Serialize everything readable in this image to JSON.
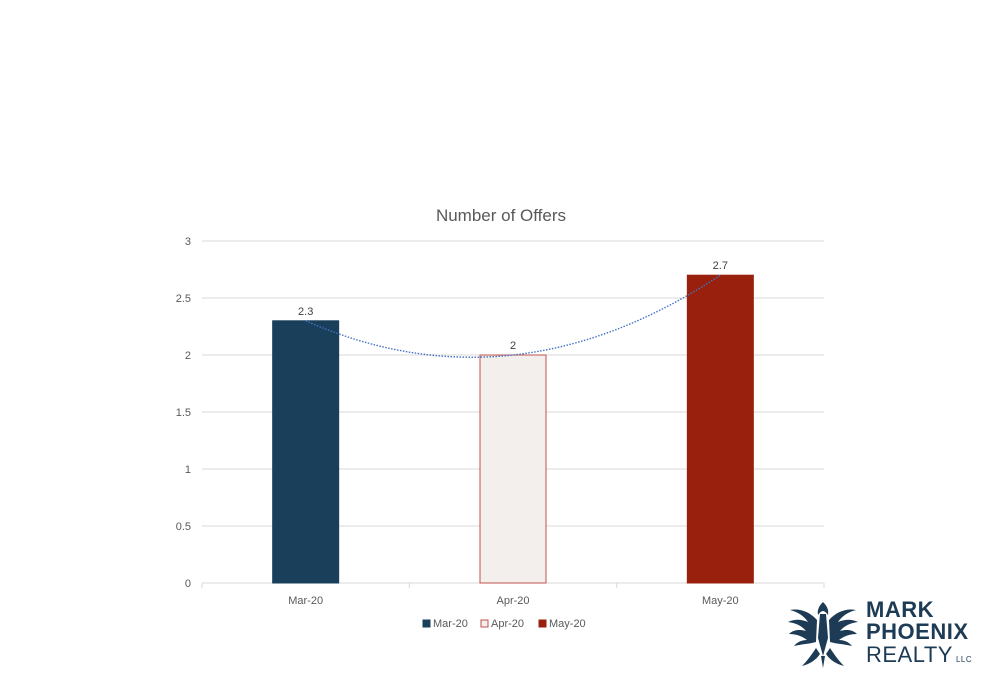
{
  "chart_data": {
    "type": "bar",
    "title": "Number of Offers",
    "categories": [
      "Mar-20",
      "Apr-20",
      "May-20"
    ],
    "values": [
      2.3,
      2,
      2.7
    ],
    "data_labels": [
      "2.3",
      "2",
      "2.7"
    ],
    "ylim": [
      0,
      3
    ],
    "yticks": [
      "0",
      "0.5",
      "1",
      "1.5",
      "2",
      "2.5",
      "3"
    ],
    "ytick_values": [
      0,
      0.5,
      1,
      1.5,
      2,
      2.5,
      3
    ],
    "grid": true,
    "trendline": "polynomial",
    "legend": {
      "placement": "bottom",
      "entries": [
        "Mar-20",
        "Apr-20",
        "May-20"
      ]
    },
    "colors": {
      "fills": [
        "#1a3f5a",
        "#f2efec",
        "#98200c"
      ],
      "strokes": [
        "#1a3f5a",
        "#c0504d",
        "#98200c"
      ],
      "trendline": "#4472c4",
      "grid": "#d9d9d9"
    }
  },
  "logo": {
    "line1": "MARK",
    "line2": "PHOENIX",
    "line3": "REALTY",
    "suffix": "LLC",
    "color": "#1d3b55"
  }
}
